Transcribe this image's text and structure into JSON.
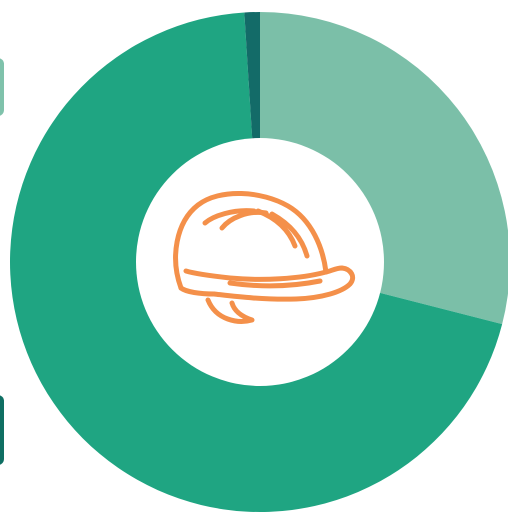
{
  "colors": {
    "background": "#ffffff",
    "center_disc": "#ffffff",
    "icon_stroke": "#f4904a",
    "edge_tab_top": "#7fc2ab",
    "edge_tab_bottom": "#0f6f63"
  },
  "center_icon": "hard-hat-icon",
  "chart_data": {
    "type": "donut",
    "title": "",
    "slices": [
      {
        "value": 29,
        "color": "#7bbfa8"
      },
      {
        "value": 70,
        "color": "#1fa582"
      },
      {
        "value": 1,
        "color": "#136b68"
      }
    ]
  }
}
